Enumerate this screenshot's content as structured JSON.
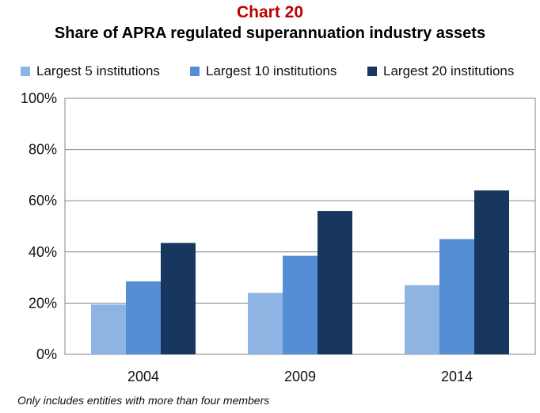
{
  "chart_data": {
    "type": "bar",
    "title": "Chart 20",
    "subtitle": "Share of APRA regulated superannuation industry assets",
    "categories": [
      "2004",
      "2009",
      "2014"
    ],
    "series": [
      {
        "name": "Largest 5 institutions",
        "color": "#8DB4E2",
        "values": [
          19.5,
          24,
          27
        ]
      },
      {
        "name": "Largest 10 institutions",
        "color": "#558ED5",
        "values": [
          28.5,
          38.5,
          45
        ]
      },
      {
        "name": "Largest 20 institutions",
        "color": "#17375E",
        "values": [
          43.5,
          56,
          64
        ]
      }
    ],
    "ylim": [
      0,
      100
    ],
    "yticks": [
      "0%",
      "20%",
      "40%",
      "60%",
      "80%",
      "100%"
    ],
    "grid": true,
    "legend_position": "top",
    "footnote": "Only includes entities with more than four members"
  },
  "colors": {
    "title": "#C00000",
    "subtitle": "#000000",
    "gridline": "#868686",
    "axis": "#868686"
  }
}
